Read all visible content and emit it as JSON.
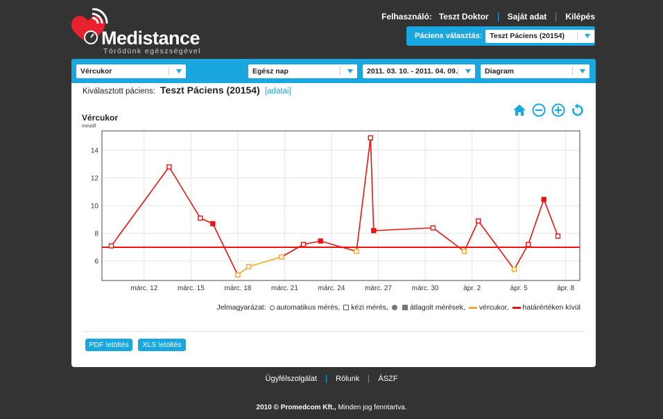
{
  "header": {
    "brand": "Medistance",
    "tagline": "Törődünk egészségével",
    "user_label": "Felhasználó:",
    "user_name": "Teszt Doktor",
    "own_data": "Saját adat",
    "logout": "Kilépés",
    "patient_select_label": "Páciens választás:",
    "patient_select_value": "Teszt Páciens (20154)"
  },
  "filters": {
    "measure": "Vércukor",
    "period": "Egész nap",
    "date_range": "2011. 03. 10. - 2011. 04. 09.",
    "view": "Diagram"
  },
  "patient": {
    "label": "Kiválasztott páciens:",
    "name": "Teszt Páciens (20154)",
    "details_link": "[adatai]"
  },
  "chart_title": "Vércukor",
  "chart_unit": "mmol/l",
  "chart_data": {
    "type": "line",
    "title": "Vércukor",
    "ylabel": "mmol/l",
    "ylim": [
      4.6,
      15.4
    ],
    "yticks": [
      6,
      8,
      10,
      12,
      14
    ],
    "x_range_days": [
      9.3,
      39.9
    ],
    "xtick_labels": [
      "márc. 12",
      "márc. 15",
      "márc. 18",
      "márc. 21",
      "márc. 24",
      "márc. 27",
      "márc. 30",
      "ápr. 2",
      "ápr. 5",
      "ápr. 8"
    ],
    "xtick_days": [
      12,
      15,
      18,
      21,
      24,
      27,
      30,
      33,
      36,
      39
    ],
    "threshold": 7.0,
    "threshold_color": "#ee1111",
    "in_range_color": "#f5a623",
    "out_of_range_color": "#ee1111",
    "points": [
      {
        "day": 9.9,
        "value": 7.1,
        "marker": "open"
      },
      {
        "day": 13.6,
        "value": 12.8,
        "marker": "open"
      },
      {
        "day": 15.6,
        "value": 9.1,
        "marker": "open"
      },
      {
        "day": 16.4,
        "value": 8.7,
        "marker": "filled"
      },
      {
        "day": 18.0,
        "value": 5.0,
        "marker": "open"
      },
      {
        "day": 18.7,
        "value": 5.6,
        "marker": "open"
      },
      {
        "day": 20.8,
        "value": 6.3,
        "marker": "open"
      },
      {
        "day": 22.2,
        "value": 7.2,
        "marker": "open"
      },
      {
        "day": 23.3,
        "value": 7.45,
        "marker": "filled"
      },
      {
        "day": 25.6,
        "value": 6.7,
        "marker": "open"
      },
      {
        "day": 26.5,
        "value": 14.9,
        "marker": "open"
      },
      {
        "day": 26.7,
        "value": 8.2,
        "marker": "filled"
      },
      {
        "day": 30.5,
        "value": 8.4,
        "marker": "open"
      },
      {
        "day": 32.5,
        "value": 6.7,
        "marker": "open"
      },
      {
        "day": 33.4,
        "value": 8.9,
        "marker": "open"
      },
      {
        "day": 35.7,
        "value": 5.4,
        "marker": "open"
      },
      {
        "day": 36.6,
        "value": 7.2,
        "marker": "open"
      },
      {
        "day": 37.6,
        "value": 10.45,
        "marker": "filled"
      },
      {
        "day": 38.5,
        "value": 7.8,
        "marker": "open"
      }
    ],
    "grid": true
  },
  "legend": {
    "prefix": "Jelmagyarázat:",
    "auto": "automatikus mérés,",
    "manual": "kézi mérés,",
    "averaged": "átlagolt mérések,",
    "glucose": "vércukor,",
    "out_of_range": "határértéken kívül"
  },
  "buttons": {
    "pdf": "PDF letöltés",
    "xls": "XLS letöltés"
  },
  "footer": {
    "support": "Ügyfélszolgálat",
    "about": "Rólunk",
    "terms": "ÁSZF",
    "copyright_bold": "2010 © Promedcom Kft.,",
    "copyright_rest": " Minden jog fenntartva."
  },
  "colors": {
    "accent": "#1aa6df",
    "background": "#333333",
    "logo_red": "#e8212e"
  }
}
